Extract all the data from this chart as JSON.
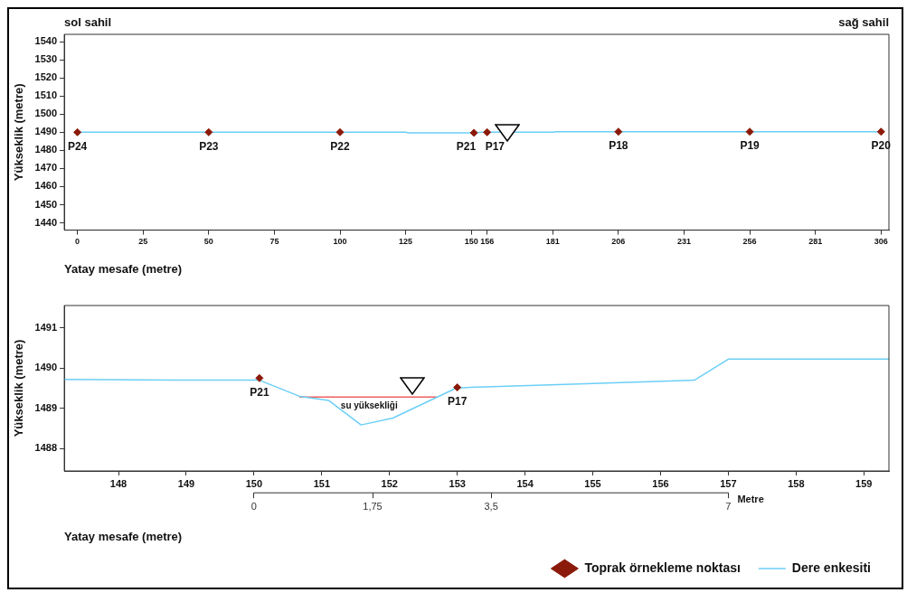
{
  "chart_data": [
    {
      "type": "line",
      "xlabel": "Yatay mesafe (metre)",
      "ylabel": "Yükseklik (metre)",
      "xlim": [
        -5,
        309
      ],
      "ylim": [
        1436,
        1544
      ],
      "xticks": [
        0,
        25,
        50,
        75,
        100,
        125,
        150,
        156,
        181,
        206,
        231,
        256,
        281,
        306
      ],
      "yticks": [
        1440,
        1450,
        1460,
        1470,
        1480,
        1490,
        1500,
        1510,
        1520,
        1530,
        1540
      ],
      "grid": false,
      "legend": false,
      "annotations": [
        "sol sahil",
        "sağ sahil"
      ],
      "series": [
        {
          "color": "#6ccff6",
          "marker": "none",
          "x": [
            0,
            125,
            126,
            151,
            154,
            181,
            182,
            306
          ],
          "values": [
            1490,
            1490,
            1489.7,
            1489.7,
            1490,
            1490,
            1490.3,
            1490.3
          ]
        },
        {
          "type": "scatter",
          "color": "#8b1a0a",
          "marker": "diamond",
          "x": [
            0,
            50,
            100,
            151,
            156,
            206,
            256,
            306
          ],
          "values": [
            1490,
            1490,
            1490,
            1489.7,
            1490,
            1490.3,
            1490.3,
            1490.3
          ],
          "value_labels": [
            "P24",
            "P23",
            "P22",
            "P21",
            "P17",
            "P18",
            "P19",
            "P20"
          ]
        }
      ]
    },
    {
      "type": "line",
      "xlabel": "Yatay mesafe (metre)",
      "ylabel": "Yükseklik (metre)",
      "xlim": [
        147.2,
        159.37
      ],
      "ylim": [
        1487.45,
        1491.55
      ],
      "xticks": [
        148,
        149,
        150,
        151,
        152,
        153,
        154,
        155,
        156,
        157,
        158,
        159
      ],
      "yticks": [
        1488,
        1489,
        1490,
        1491
      ],
      "x2lim": [
        -2.8,
        9.37
      ],
      "x2label": "Metre",
      "x2ticks": [
        0,
        {
          "value": 1.75,
          "label": "1,75"
        },
        {
          "value": 3.5,
          "label": "3,5"
        },
        7
      ],
      "grid": false,
      "legend": "bottom",
      "annotations": [
        {
          "text": "su yüksekliği",
          "x": 151.7,
          "y": 1489.28
        }
      ],
      "series": [
        {
          "name": "Dere enkesiti",
          "color": "#6ccff6",
          "marker": "none",
          "x": [
            147.2,
            148.83,
            150.08,
            150.67,
            151.1,
            151.58,
            152.05,
            152.98,
            153.2,
            154.7,
            156.5,
            157,
            159.37
          ],
          "values": [
            1489.72,
            1489.7,
            1489.7,
            1489.3,
            1489.2,
            1488.59,
            1488.76,
            1489.5,
            1489.52,
            1489.6,
            1489.7,
            1490.22,
            1490.22
          ]
        },
        {
          "color": "#f06060",
          "marker": "none",
          "x": [
            150.67,
            152.7
          ],
          "values": [
            1489.28,
            1489.28
          ]
        },
        {
          "type": "scatter",
          "name": "Toprak örnekleme noktası",
          "color": "#8b1a0a",
          "marker": "diamond",
          "x": [
            150.08,
            153
          ],
          "values": [
            1489.75,
            1489.52
          ],
          "value_labels": [
            "P21",
            "P17"
          ]
        }
      ]
    }
  ]
}
